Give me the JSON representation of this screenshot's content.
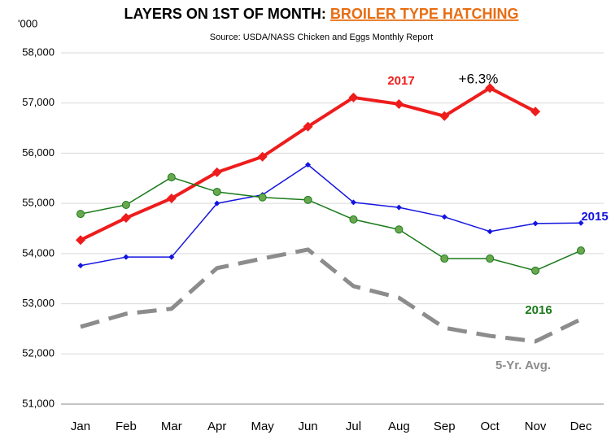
{
  "chart_data": {
    "type": "line",
    "title": "LAYERS ON 1ST OF MONTH: ",
    "title_highlight": "BROILER TYPE HATCHING",
    "subtitle": "Source: USDA/NASS Chicken and Eggs Monthly Report",
    "y_unit_label": "'000",
    "annotation": "+6.3%",
    "categories": [
      "Jan",
      "Feb",
      "Mar",
      "Apr",
      "May",
      "Jun",
      "Jul",
      "Aug",
      "Sep",
      "Oct",
      "Nov",
      "Dec"
    ],
    "series": [
      {
        "name": "2017",
        "color": "#ee1c1c",
        "values": [
          54270,
          54710,
          55100,
          55620,
          55930,
          56530,
          57110,
          56980,
          56740,
          57300,
          56830,
          null
        ]
      },
      {
        "name": "2015",
        "color": "#1414e0",
        "values": [
          53760,
          53930,
          53930,
          55000,
          55170,
          55770,
          55020,
          54920,
          54730,
          54440,
          54600,
          54610
        ]
      },
      {
        "name": "2016",
        "color": "#1a7a1a",
        "values": [
          54790,
          54970,
          55520,
          55230,
          55120,
          55070,
          54680,
          54480,
          53900,
          53900,
          53660,
          54060
        ]
      },
      {
        "name": "5-Yr. Avg.",
        "color": "#8c8c8c",
        "values": [
          52540,
          52800,
          52900,
          53710,
          53900,
          54080,
          53350,
          53120,
          52520,
          52360,
          52250,
          52690
        ]
      }
    ],
    "ylim": [
      51000,
      58000
    ],
    "yticks": [
      {
        "value": 51000,
        "label": "51,000"
      },
      {
        "value": 52000,
        "label": "52,000"
      },
      {
        "value": 53000,
        "label": "53,000"
      },
      {
        "value": 54000,
        "label": "54,000"
      },
      {
        "value": 55000,
        "label": "55,000"
      },
      {
        "value": 56000,
        "label": "56,000"
      },
      {
        "value": 57000,
        "label": "57,000"
      },
      {
        "value": 58000,
        "label": "58,000"
      }
    ],
    "grid": true
  }
}
